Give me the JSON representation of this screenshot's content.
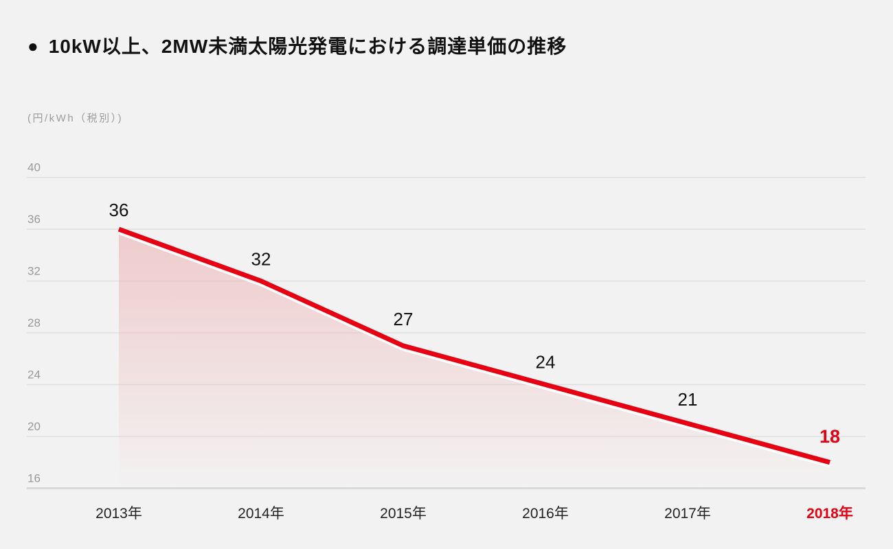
{
  "title": {
    "bullet": "●",
    "text": "10kW以上、2MW未満太陽光発電における調達単価の推移"
  },
  "chart_data": {
    "type": "area",
    "title": "10kW以上、2MW未満太陽光発電における調達単価の推移",
    "ylabel": "(円/kWh（税別）)",
    "xlabel": "",
    "categories": [
      "2013年",
      "2014年",
      "2015年",
      "2016年",
      "2017年",
      "2018年"
    ],
    "values": [
      36,
      32,
      27,
      24,
      21,
      18
    ],
    "yticks": [
      40,
      36,
      32,
      28,
      24,
      20,
      16
    ],
    "ylim": [
      16,
      40
    ],
    "grid": true,
    "legend": "none",
    "highlight_index": 5,
    "colors": {
      "background": "#f2f2f2",
      "line": "#e60012",
      "line_under_stroke": "#ffffff",
      "area_top": "rgba(237,176,177,0.6)",
      "area_bottom": "rgba(237,176,177,0)",
      "grid": "#dcdcdc",
      "axis": "#d9d9d9",
      "tick_label": "#999999",
      "value_label": "#111111",
      "category_label": "#222222",
      "highlight": "#e60012"
    }
  }
}
